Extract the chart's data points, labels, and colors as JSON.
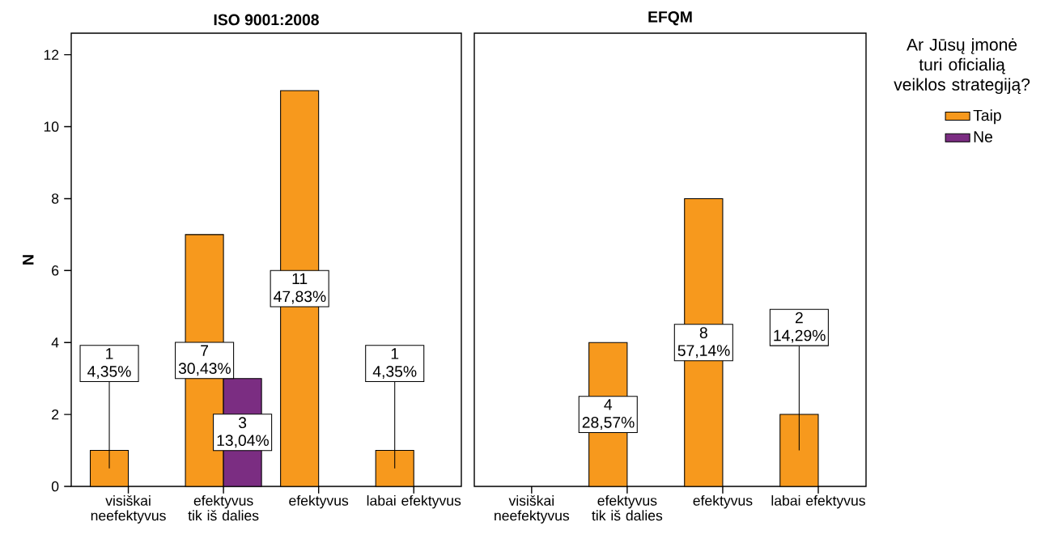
{
  "chart_data": [
    {
      "type": "bar",
      "title": "ISO 9001:2008",
      "ylabel": "N",
      "categories": [
        "visiškai neefektyvus",
        "efektyvus tik iš dalies",
        "efektyvus",
        "labai efektyvus"
      ],
      "series": [
        {
          "color": "#f7991d",
          "values": [
            1,
            7,
            11,
            1
          ],
          "value_labels": [
            "1 4,35%",
            "7 30,43%",
            "11 47,83%",
            "1 4,35%"
          ]
        },
        {
          "color": "#7b2d82",
          "values": [
            null,
            3,
            null,
            null
          ],
          "value_labels": [
            null,
            "3 13,04%",
            null,
            null
          ]
        }
      ],
      "ylim": [
        0,
        12.6
      ],
      "yticks": [
        0,
        2,
        4,
        6,
        8,
        10,
        12
      ]
    },
    {
      "type": "bar",
      "title": "EFQM",
      "legend_title": "Ar Jūsų įmonė turi oficialią veiklos strategiją?",
      "legend": "right",
      "categories": [
        "visiškai neefektyvus",
        "efektyvus tik iš dalies",
        "efektyvus",
        "labai efektyvus"
      ],
      "series": [
        {
          "name": "Taip",
          "color": "#f7991d",
          "values": [
            null,
            4,
            8,
            2
          ],
          "value_labels": [
            null,
            "4 28,57%",
            "8 57,14%",
            "2 14,29%"
          ]
        },
        {
          "name": "Ne",
          "color": "#7b2d82",
          "values": [
            null,
            null,
            null,
            null
          ]
        }
      ],
      "ylim": [
        0,
        12.6
      ],
      "tick_labels": "x"
    }
  ]
}
